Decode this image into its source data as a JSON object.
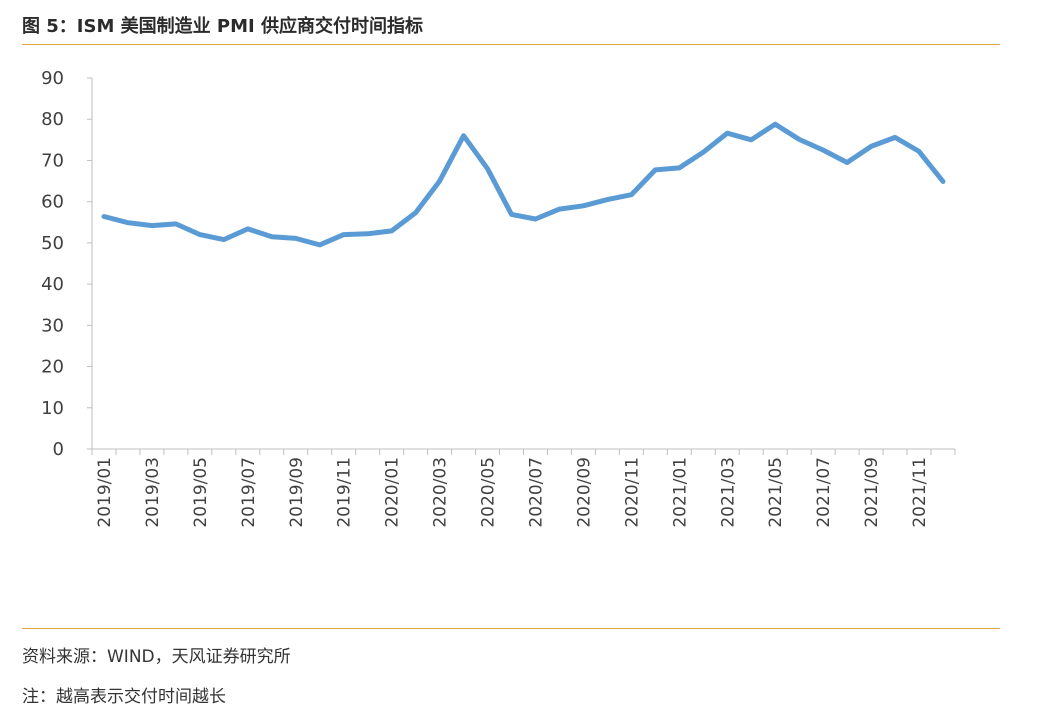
{
  "header": {
    "title": "图 5：ISM 美国制造业 PMI 供应商交付时间指标"
  },
  "footer": {
    "source": "资料来源：WIND，天风证券研究所",
    "note": "注：越高表示交付时间越长"
  },
  "colors": {
    "line": "#5b9bd5",
    "rule": "#d9a441",
    "axis": "#bfbfbf"
  },
  "chart_data": {
    "type": "line",
    "title": "",
    "xlabel": "",
    "ylabel": "",
    "ylim": [
      0,
      90
    ],
    "yticks": [
      0,
      10,
      20,
      30,
      40,
      50,
      60,
      70,
      80,
      90
    ],
    "grid": false,
    "legend": "none",
    "x": [
      "2019/01",
      "2019/02",
      "2019/03",
      "2019/04",
      "2019/05",
      "2019/06",
      "2019/07",
      "2019/08",
      "2019/09",
      "2019/10",
      "2019/11",
      "2019/12",
      "2020/01",
      "2020/02",
      "2020/03",
      "2020/04",
      "2020/05",
      "2020/06",
      "2020/07",
      "2020/08",
      "2020/09",
      "2020/10",
      "2020/11",
      "2020/12",
      "2021/01",
      "2021/02",
      "2021/03",
      "2021/04",
      "2021/05",
      "2021/06",
      "2021/07",
      "2021/08",
      "2021/09",
      "2021/10",
      "2021/11",
      "2021/12"
    ],
    "x_tick_labels": [
      "2019/01",
      "2019/03",
      "2019/05",
      "2019/07",
      "2019/09",
      "2019/11",
      "2020/01",
      "2020/03",
      "2020/05",
      "2020/07",
      "2020/09",
      "2020/11",
      "2021/01",
      "2021/03",
      "2021/05",
      "2021/07",
      "2021/09",
      "2021/11"
    ],
    "series": [
      {
        "values": [
          56.4,
          54.9,
          54.2,
          54.6,
          52.0,
          50.8,
          53.4,
          51.5,
          51.1,
          49.5,
          52.0,
          52.2,
          52.9,
          57.3,
          65.0,
          76.0,
          68.0,
          56.9,
          55.8,
          58.2,
          59.0,
          60.5,
          61.7,
          67.7,
          68.2,
          72.0,
          76.6,
          75.0,
          78.8,
          75.1,
          72.5,
          69.5,
          73.4,
          75.6,
          72.2,
          64.9
        ]
      }
    ]
  }
}
